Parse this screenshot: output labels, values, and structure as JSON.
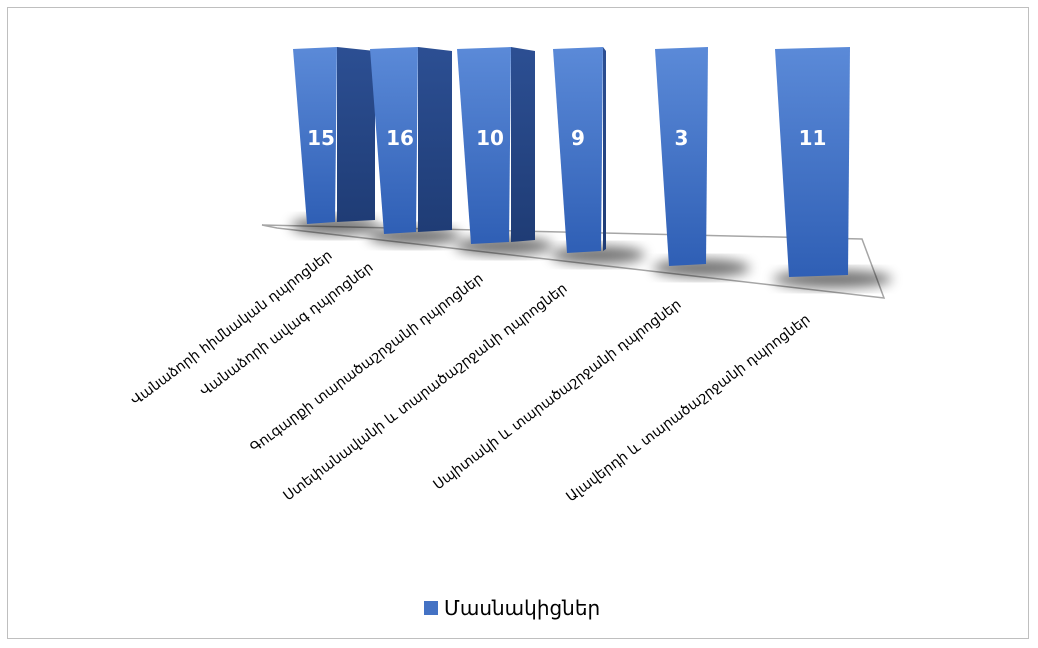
{
  "chart_data": {
    "type": "bar",
    "style": "3d-column",
    "categories": [
      "Վանաձորի հիմնական դպրոցներ",
      "Վանաձորի ավագ դպրոցներ",
      "Գուգարքի տարածաշրջանի դպրոցներ",
      "Ստեփանավանի և տարածաշրջանի դպրոցներ",
      "Սպիտակի և տարածաշրջանի դպրոցներ",
      "Ալավերդի և տարածաշրջանի դպրոցներ"
    ],
    "series": [
      {
        "name": "Մասնակիցներ",
        "values": [
          15,
          16,
          10,
          9,
          3,
          11
        ],
        "color": "#4472c4"
      }
    ],
    "data_labels": true,
    "legend_position": "bottom",
    "grid": false
  }
}
